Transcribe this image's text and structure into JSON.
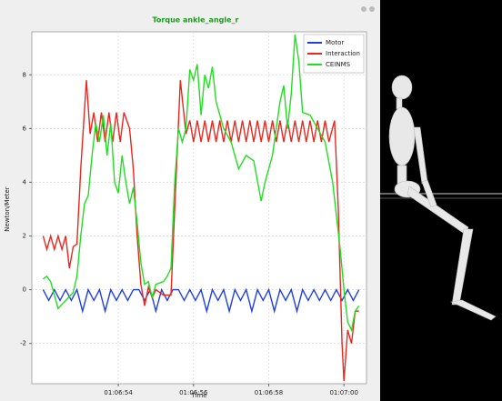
{
  "chart_data": {
    "type": "line",
    "title": "Torque ankle_angle_r",
    "x_label": "Time",
    "y_label": "Newton/Meter",
    "xlim": [
      51.7,
      60.6
    ],
    "ylim": [
      -3.5,
      9.6
    ],
    "xticks": [
      {
        "value": 54,
        "label": "01:06:54"
      },
      {
        "value": 56,
        "label": "01:06:56"
      },
      {
        "value": 58,
        "label": "01:06:58"
      },
      {
        "value": 60,
        "label": "01:07:00"
      }
    ],
    "yticks": [
      -2,
      0,
      2,
      4,
      6,
      8
    ],
    "grid": true,
    "legend": "upper right",
    "series": [
      {
        "name": "Motor",
        "color": "#1f3fe0",
        "x": [
          52.0,
          52.15,
          52.3,
          52.45,
          52.6,
          52.75,
          52.9,
          53.05,
          53.2,
          53.35,
          53.5,
          53.65,
          53.8,
          53.95,
          54.1,
          54.25,
          54.4,
          54.55,
          54.7,
          54.85,
          55.0,
          55.15,
          55.3,
          55.45,
          55.6,
          55.75,
          55.9,
          56.05,
          56.2,
          56.35,
          56.5,
          56.65,
          56.8,
          56.95,
          57.1,
          57.25,
          57.4,
          57.55,
          57.7,
          57.85,
          58.0,
          58.15,
          58.3,
          58.45,
          58.6,
          58.75,
          58.9,
          59.05,
          59.2,
          59.35,
          59.5,
          59.65,
          59.8,
          59.95,
          60.1,
          60.25,
          60.4
        ],
        "values": [
          0,
          -0.4,
          0,
          -0.4,
          0,
          -0.4,
          0,
          -0.8,
          0,
          -0.4,
          0,
          -0.8,
          0,
          -0.4,
          0,
          -0.4,
          0,
          0,
          -0.4,
          0,
          -0.8,
          0,
          -0.4,
          0,
          0,
          -0.4,
          0,
          -0.4,
          0,
          -0.8,
          0,
          -0.4,
          0,
          -0.8,
          0,
          -0.4,
          0,
          -0.8,
          0,
          -0.4,
          0,
          -0.8,
          0,
          -0.4,
          0,
          -0.8,
          0,
          -0.4,
          0,
          -0.4,
          0,
          -0.4,
          0,
          -0.4,
          0,
          -0.4,
          0
        ]
      },
      {
        "name": "Interaction",
        "color": "#e8281e",
        "x": [
          52.0,
          52.1,
          52.2,
          52.3,
          52.4,
          52.5,
          52.6,
          52.7,
          52.8,
          52.9,
          53.0,
          53.15,
          53.25,
          53.35,
          53.45,
          53.55,
          53.65,
          53.75,
          53.85,
          53.95,
          54.05,
          54.15,
          54.3,
          54.4,
          54.5,
          54.6,
          54.7,
          54.8,
          54.9,
          55.0,
          55.2,
          55.4,
          55.5,
          55.65,
          55.8,
          55.9,
          56.0,
          56.1,
          56.2,
          56.3,
          56.4,
          56.5,
          56.6,
          56.7,
          56.8,
          56.9,
          57.0,
          57.1,
          57.2,
          57.3,
          57.4,
          57.5,
          57.6,
          57.7,
          57.8,
          57.9,
          58.0,
          58.1,
          58.2,
          58.3,
          58.4,
          58.5,
          58.6,
          58.7,
          58.8,
          58.9,
          59.0,
          59.1,
          59.2,
          59.3,
          59.4,
          59.5,
          59.6,
          59.75,
          59.85,
          59.95,
          60.0,
          60.1,
          60.2,
          60.3,
          60.4
        ],
        "values": [
          2,
          1.5,
          2,
          1.5,
          2,
          1.5,
          2,
          0.8,
          1.6,
          1.7,
          4.5,
          7.8,
          5.8,
          6.6,
          5.5,
          6.6,
          5.5,
          6.6,
          5.5,
          6.6,
          5.5,
          6.6,
          6,
          4.5,
          2,
          0.2,
          -0.6,
          0.1,
          -0.3,
          0,
          -0.2,
          -0.2,
          3,
          7.8,
          5.8,
          6.3,
          5.5,
          6.3,
          5.5,
          6.3,
          5.5,
          6.3,
          5.5,
          6.3,
          5.5,
          6.3,
          5.5,
          6.3,
          5.5,
          6.3,
          5.5,
          6.3,
          5.5,
          6.3,
          5.5,
          6.3,
          5.5,
          6.3,
          5.5,
          6.3,
          5.5,
          6.3,
          5.5,
          6.3,
          5.5,
          6.3,
          5.5,
          6.3,
          5.5,
          6.3,
          5.5,
          6.3,
          5.5,
          6.3,
          3,
          -2,
          -3.4,
          -1.5,
          -2,
          -0.8,
          -0.8
        ]
      },
      {
        "name": "CEINMS",
        "color": "#22dd22",
        "x": [
          52.0,
          52.1,
          52.2,
          52.4,
          52.6,
          52.8,
          52.9,
          53.0,
          53.1,
          53.2,
          53.3,
          53.4,
          53.5,
          53.6,
          53.7,
          53.8,
          53.9,
          54.0,
          54.1,
          54.2,
          54.3,
          54.4,
          54.5,
          54.6,
          54.7,
          54.8,
          54.9,
          55.0,
          55.2,
          55.3,
          55.4,
          55.5,
          55.6,
          55.7,
          55.8,
          55.9,
          56.0,
          56.1,
          56.2,
          56.3,
          56.4,
          56.5,
          56.6,
          56.8,
          57.0,
          57.2,
          57.4,
          57.6,
          57.8,
          57.9,
          58.1,
          58.3,
          58.4,
          58.5,
          58.6,
          58.7,
          58.8,
          58.9,
          59.1,
          59.3,
          59.5,
          59.7,
          59.9,
          60.0,
          60.1,
          60.2,
          60.3,
          60.4
        ],
        "values": [
          0.4,
          0.5,
          0.3,
          -0.7,
          -0.4,
          -0.1,
          0.5,
          2,
          3.2,
          3.5,
          5,
          6.2,
          5.5,
          6.5,
          5,
          6.2,
          4,
          3.6,
          5,
          4,
          3.2,
          3.8,
          2.5,
          1,
          0.2,
          0.3,
          -0.3,
          0.2,
          0.3,
          0.5,
          0.8,
          4,
          6,
          5.5,
          6,
          8.2,
          7.8,
          8.4,
          6.5,
          8,
          7.5,
          8.3,
          7,
          6,
          5.5,
          4.5,
          5,
          4.8,
          3.3,
          4,
          5,
          7,
          7.6,
          6,
          7.3,
          9.5,
          8.5,
          6.6,
          6.5,
          6,
          5.5,
          4,
          1.5,
          0,
          -1.2,
          -1.5,
          -0.8,
          -0.6
        ]
      }
    ]
  }
}
